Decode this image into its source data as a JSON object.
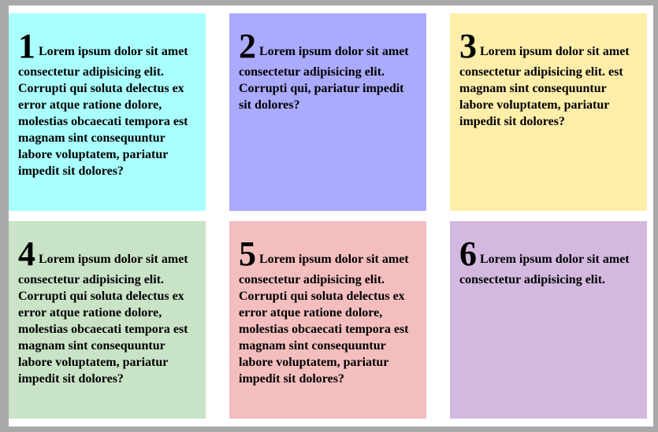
{
  "cards": [
    {
      "number": "1",
      "text": "Lorem ipsum dolor sit amet consectetur adipisicing elit. Corrupti qui soluta delectus ex error atque ratione dolore, molestias obcaecati tempora est magnam sint consequuntur labore voluptatem, pariatur impedit sit dolores?",
      "color": "#a9fffe"
    },
    {
      "number": "2",
      "text": "Lorem ipsum dolor sit amet consectetur adipisicing elit. Corrupti qui, pariatur impedit sit dolores?",
      "color": "#aaaafe"
    },
    {
      "number": "3",
      "text": "Lorem ipsum dolor sit amet consectetur adipisicing elit. est magnam sint consequuntur labore voluptatem, pariatur impedit sit dolores?",
      "color": "#ffeeaa"
    },
    {
      "number": "4",
      "text": "Lorem ipsum dolor sit amet consectetur adipisicing elit. Corrupti qui soluta delectus ex error atque ratione dolore, molestias obcaecati tempora est magnam sint consequuntur labore voluptatem, pariatur impedit sit dolores?",
      "color": "#c9e3c6"
    },
    {
      "number": "5",
      "text": "Lorem ipsum dolor sit amet consectetur adipisicing elit. Corrupti qui soluta delectus ex error atque ratione dolore, molestias obcaecati tempora est magnam sint consequuntur labore voluptatem, pariatur impedit sit dolores?",
      "color": "#f4bebe"
    },
    {
      "number": "6",
      "text": "Lorem ipsum dolor sit amet consectetur adipisicing elit.",
      "color": "#d3b9e0"
    }
  ]
}
